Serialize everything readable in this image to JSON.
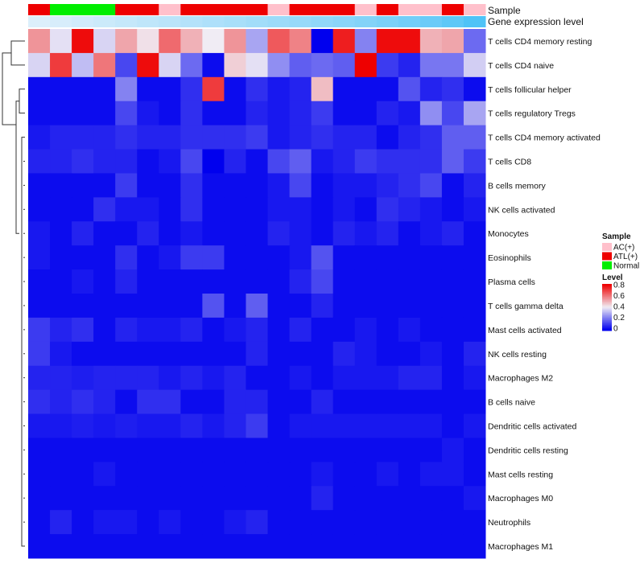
{
  "chart_data": {
    "type": "heatmap",
    "annotation_tracks": {
      "sample_label": "Sample",
      "gene_label": "Gene expression level",
      "sample_groups": [
        "ATL(+)",
        "Normal",
        "Normal",
        "Normal",
        "ATL(+)",
        "ATL(+)",
        "AC(+)",
        "ATL(+)",
        "ATL(+)",
        "ATL(+)",
        "ATL(+)",
        "AC(+)",
        "ATL(+)",
        "ATL(+)",
        "ATL(+)",
        "AC(+)",
        "ATL(+)",
        "AC(+)",
        "AC(+)",
        "ATL(+)",
        "AC(+)"
      ],
      "gene_levels": [
        0.05,
        0.08,
        0.12,
        0.16,
        0.2,
        0.24,
        0.28,
        0.32,
        0.36,
        0.4,
        0.44,
        0.48,
        0.52,
        0.56,
        0.6,
        0.65,
        0.7,
        0.76,
        0.82,
        0.9,
        1.0
      ]
    },
    "rows": [
      "T cells CD4 memory resting",
      "T cells CD4 naive",
      "T cells follicular helper",
      "T cells regulatory  Tregs",
      "T cells CD4 memory activated",
      "T cells CD8",
      "B cells memory",
      "NK cells activated",
      "Monocytes",
      "Eosinophils",
      "Plasma cells",
      "T cells gamma delta",
      "Mast cells activated",
      "NK cells resting",
      "Macrophages M2",
      "B cells naive",
      "Dendritic cells activated",
      "Dendritic cells resting",
      "Mast cells resting",
      "Macrophages M0",
      "Neutrophils",
      "Macrophages M1"
    ],
    "values": [
      [
        0.55,
        0.38,
        0.78,
        0.36,
        0.52,
        0.42,
        0.62,
        0.5,
        0.4,
        0.55,
        0.28,
        0.65,
        0.58,
        0.0,
        0.75,
        0.22,
        0.78,
        0.78,
        0.5,
        0.52,
        0.18
      ],
      [
        0.36,
        0.7,
        0.32,
        0.6,
        0.12,
        0.78,
        0.36,
        0.18,
        0.02,
        0.45,
        0.38,
        0.24,
        0.16,
        0.18,
        0.16,
        0.8,
        0.1,
        0.06,
        0.2,
        0.2,
        0.35
      ],
      [
        0.02,
        0.02,
        0.02,
        0.02,
        0.22,
        0.02,
        0.02,
        0.08,
        0.7,
        0.02,
        0.08,
        0.04,
        0.06,
        0.48,
        0.02,
        0.02,
        0.02,
        0.14,
        0.06,
        0.08,
        0.02
      ],
      [
        0.02,
        0.02,
        0.02,
        0.02,
        0.12,
        0.04,
        0.02,
        0.08,
        0.02,
        0.02,
        0.06,
        0.04,
        0.06,
        0.1,
        0.02,
        0.02,
        0.06,
        0.04,
        0.24,
        0.12,
        0.28
      ],
      [
        0.04,
        0.06,
        0.06,
        0.06,
        0.08,
        0.06,
        0.06,
        0.08,
        0.08,
        0.08,
        0.1,
        0.04,
        0.06,
        0.08,
        0.06,
        0.06,
        0.02,
        0.06,
        0.08,
        0.16,
        0.16
      ],
      [
        0.06,
        0.06,
        0.08,
        0.06,
        0.06,
        0.02,
        0.04,
        0.12,
        0.0,
        0.06,
        0.02,
        0.12,
        0.16,
        0.04,
        0.06,
        0.1,
        0.08,
        0.08,
        0.08,
        0.16,
        0.1
      ],
      [
        0.02,
        0.02,
        0.02,
        0.02,
        0.1,
        0.02,
        0.02,
        0.08,
        0.02,
        0.02,
        0.02,
        0.04,
        0.12,
        0.02,
        0.04,
        0.04,
        0.06,
        0.08,
        0.12,
        0.02,
        0.06
      ],
      [
        0.02,
        0.02,
        0.02,
        0.08,
        0.04,
        0.04,
        0.02,
        0.08,
        0.02,
        0.02,
        0.02,
        0.04,
        0.04,
        0.02,
        0.04,
        0.02,
        0.08,
        0.06,
        0.04,
        0.02,
        0.04
      ],
      [
        0.04,
        0.02,
        0.06,
        0.02,
        0.02,
        0.06,
        0.02,
        0.04,
        0.02,
        0.02,
        0.02,
        0.06,
        0.04,
        0.02,
        0.06,
        0.04,
        0.06,
        0.02,
        0.04,
        0.06,
        0.02
      ],
      [
        0.04,
        0.02,
        0.02,
        0.02,
        0.08,
        0.02,
        0.04,
        0.1,
        0.1,
        0.02,
        0.02,
        0.02,
        0.04,
        0.14,
        0.02,
        0.02,
        0.02,
        0.02,
        0.02,
        0.02,
        0.02
      ],
      [
        0.02,
        0.02,
        0.04,
        0.02,
        0.06,
        0.02,
        0.02,
        0.02,
        0.02,
        0.02,
        0.02,
        0.02,
        0.06,
        0.12,
        0.02,
        0.02,
        0.02,
        0.02,
        0.02,
        0.02,
        0.02
      ],
      [
        0.02,
        0.02,
        0.02,
        0.02,
        0.02,
        0.02,
        0.02,
        0.02,
        0.14,
        0.02,
        0.16,
        0.02,
        0.02,
        0.06,
        0.02,
        0.02,
        0.02,
        0.02,
        0.02,
        0.02,
        0.02
      ],
      [
        0.1,
        0.06,
        0.08,
        0.02,
        0.06,
        0.04,
        0.04,
        0.06,
        0.02,
        0.04,
        0.06,
        0.02,
        0.06,
        0.02,
        0.02,
        0.04,
        0.02,
        0.04,
        0.02,
        0.02,
        0.02
      ],
      [
        0.1,
        0.04,
        0.02,
        0.02,
        0.02,
        0.02,
        0.02,
        0.02,
        0.02,
        0.02,
        0.06,
        0.02,
        0.02,
        0.02,
        0.06,
        0.04,
        0.02,
        0.02,
        0.04,
        0.02,
        0.06
      ],
      [
        0.06,
        0.06,
        0.05,
        0.06,
        0.06,
        0.06,
        0.04,
        0.06,
        0.04,
        0.06,
        0.02,
        0.02,
        0.04,
        0.02,
        0.04,
        0.04,
        0.04,
        0.06,
        0.06,
        0.02,
        0.04
      ],
      [
        0.08,
        0.06,
        0.08,
        0.06,
        0.02,
        0.08,
        0.08,
        0.02,
        0.02,
        0.06,
        0.06,
        0.02,
        0.02,
        0.06,
        0.02,
        0.02,
        0.02,
        0.02,
        0.02,
        0.02,
        0.02
      ],
      [
        0.04,
        0.04,
        0.05,
        0.04,
        0.05,
        0.04,
        0.04,
        0.06,
        0.04,
        0.06,
        0.1,
        0.02,
        0.04,
        0.04,
        0.04,
        0.04,
        0.04,
        0.04,
        0.04,
        0.02,
        0.04
      ],
      [
        0.02,
        0.02,
        0.02,
        0.02,
        0.02,
        0.02,
        0.02,
        0.02,
        0.02,
        0.02,
        0.02,
        0.02,
        0.02,
        0.02,
        0.02,
        0.02,
        0.02,
        0.02,
        0.02,
        0.04,
        0.02
      ],
      [
        0.02,
        0.02,
        0.02,
        0.04,
        0.02,
        0.02,
        0.02,
        0.02,
        0.02,
        0.02,
        0.02,
        0.02,
        0.02,
        0.04,
        0.02,
        0.02,
        0.04,
        0.02,
        0.04,
        0.04,
        0.02
      ],
      [
        0.02,
        0.02,
        0.02,
        0.02,
        0.02,
        0.02,
        0.02,
        0.02,
        0.02,
        0.02,
        0.02,
        0.02,
        0.02,
        0.06,
        0.02,
        0.02,
        0.02,
        0.02,
        0.02,
        0.02,
        0.04
      ],
      [
        0.02,
        0.06,
        0.02,
        0.04,
        0.04,
        0.02,
        0.04,
        0.02,
        0.02,
        0.04,
        0.06,
        0.02,
        0.02,
        0.02,
        0.02,
        0.02,
        0.02,
        0.02,
        0.02,
        0.02,
        0.02
      ],
      [
        0.02,
        0.02,
        0.02,
        0.02,
        0.02,
        0.02,
        0.02,
        0.02,
        0.02,
        0.02,
        0.02,
        0.02,
        0.02,
        0.02,
        0.02,
        0.02,
        0.02,
        0.02,
        0.02,
        0.02,
        0.02
      ]
    ],
    "legend": {
      "sample_title": "Sample",
      "sample_entries": [
        {
          "label": "AC(+)",
          "color": "#ffc0cb"
        },
        {
          "label": "ATL(+)",
          "color": "#ee0000"
        },
        {
          "label": "Normal",
          "color": "#00ee00"
        }
      ],
      "level_title": "Level",
      "level_ticks": [
        "0.8",
        "0.6",
        "0.4",
        "0.2",
        "0"
      ],
      "color_low": "#0000ee",
      "color_mid": "#f0ecf4",
      "color_high": "#ee0000",
      "gene_color_low": "#e3f1fb",
      "gene_color_high": "#4fc3f7"
    }
  }
}
